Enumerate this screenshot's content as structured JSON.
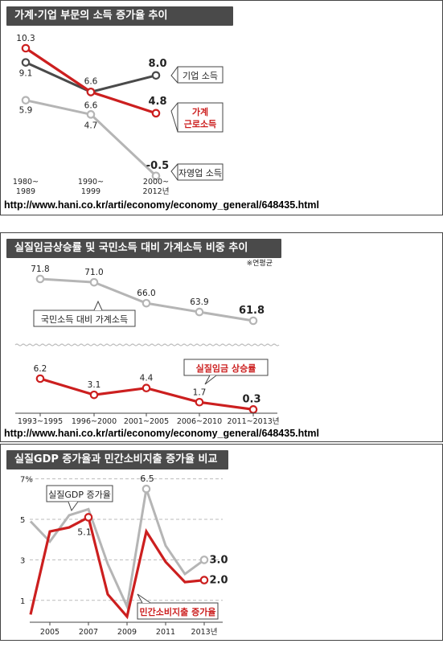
{
  "source_url": "http://www.hani.co.kr/arti/economy/economy_general/648435.html",
  "chart_data": [
    {
      "type": "line",
      "title": "가계·기업 부문의 소득 증가율 추이",
      "categories": [
        "1980~ 1989",
        "1990~ 1999",
        "2000~ 2012년"
      ],
      "category_lines": [
        [
          "1980~",
          "1989"
        ],
        [
          "1990~",
          "1999"
        ],
        [
          "2000~",
          "2012년"
        ]
      ],
      "series": [
        {
          "name": "기업 소득",
          "values": [
            9.1,
            6.6,
            8.0
          ],
          "labels": [
            "9.1",
            "6.6",
            "8.0"
          ],
          "color": "#4a4a4a"
        },
        {
          "name_lines": [
            "가계",
            "근로소득"
          ],
          "values": [
            10.3,
            6.6,
            4.8
          ],
          "labels": [
            "10.3",
            "",
            "4.8"
          ],
          "color": "#cc1f1f"
        },
        {
          "name": "자영업 소득",
          "values": [
            5.9,
            4.7,
            -0.5
          ],
          "labels": [
            "5.9",
            "4.7",
            "-0.5"
          ],
          "color": "#b5b5b5"
        }
      ],
      "grid": false
    },
    {
      "type": "line",
      "title": "실질임금상승률 및 국민소득 대비 가계소득 비중 추이",
      "note": "※연평균",
      "categories": [
        "1993~1995",
        "1996~2000",
        "2001~2005",
        "2006~2010",
        "2011~2013년"
      ],
      "series": [
        {
          "name": "국민소득 대비 가계소득",
          "values": [
            71.8,
            71.0,
            66.0,
            63.9,
            61.8
          ],
          "labels": [
            "71.8",
            "71.0",
            "66.0",
            "63.9",
            "61.8"
          ],
          "color": "#b5b5b5"
        },
        {
          "name": "실질임금 상승률",
          "values": [
            6.2,
            3.1,
            4.4,
            1.7,
            0.3
          ],
          "labels": [
            "6.2",
            "3.1",
            "4.4",
            "1.7",
            "0.3"
          ],
          "color": "#cc1f1f"
        }
      ],
      "axis": "broken",
      "grid": false
    },
    {
      "type": "line",
      "title": "실질GDP 증가율과 민간소비지출 증가율 비교",
      "x_ticks": [
        "2005",
        "2007",
        "2009",
        "2011",
        "2013년"
      ],
      "y_ticks": [
        "7%",
        "5",
        "3",
        "1"
      ],
      "ylim": [
        0,
        7
      ],
      "grid": true,
      "series": [
        {
          "name": "실질GDP 증가율",
          "color": "#b5b5b5",
          "x": [
            2004,
            2005,
            2006,
            2007,
            2008,
            2009,
            2010,
            2011,
            2012,
            2013
          ],
          "y": [
            4.9,
            3.9,
            5.2,
            5.5,
            2.8,
            0.7,
            6.5,
            3.7,
            2.3,
            3.0
          ],
          "point_labels": [
            {
              "x": 2010,
              "text": "6.5"
            },
            {
              "x": 2013,
              "text": "3.0"
            }
          ]
        },
        {
          "name": "민간소비지출 증가율",
          "color": "#cc1f1f",
          "x": [
            2004,
            2005,
            2006,
            2007,
            2008,
            2009,
            2010,
            2011,
            2012,
            2013
          ],
          "y": [
            0.3,
            4.4,
            4.6,
            5.1,
            1.3,
            0.2,
            4.4,
            2.9,
            1.9,
            2.0
          ],
          "point_labels": [
            {
              "x": 2007,
              "text": "5.1"
            },
            {
              "x": 2013,
              "text": "2.0"
            }
          ]
        }
      ]
    }
  ]
}
